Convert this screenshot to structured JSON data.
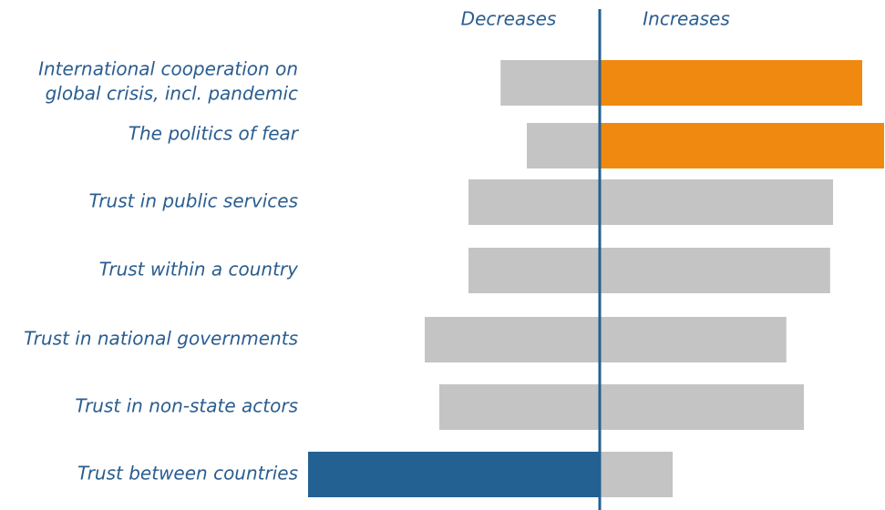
{
  "chart_data": {
    "type": "diverging-bar",
    "categories": [
      [
        "International cooperation on",
        "global crisis, incl. pandemic"
      ],
      "The politics of fear",
      "Trust in public services",
      "Trust within a country",
      "Trust in national governments",
      "Trust in non-state actors",
      "Trust between countries"
    ],
    "series": [
      {
        "name": "Decreases",
        "colors": [
          "#c4c4c4",
          "#c4c4c4",
          "#c4c4c4",
          "#c4c4c4",
          "#c4c4c4",
          "#c4c4c4",
          "#236192"
        ],
        "values": [
          -34,
          -25,
          -45,
          -45,
          -60,
          -55,
          -100
        ]
      },
      {
        "name": "Increases",
        "colors": [
          "#f0890f",
          "#f0890f",
          "#c4c4c4",
          "#c4c4c4",
          "#c4c4c4",
          "#c4c4c4",
          "#c4c4c4"
        ],
        "values": [
          90,
          97.5,
          80,
          79,
          64,
          70,
          25
        ]
      }
    ],
    "xlim": [
      -100,
      100
    ]
  }
}
